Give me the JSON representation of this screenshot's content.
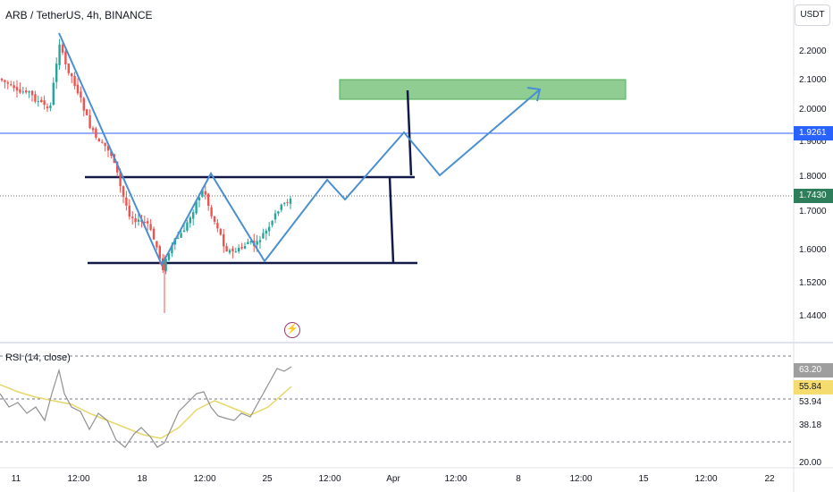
{
  "header": {
    "symbol_title": "ARB / TetherUS, 4h, BINANCE",
    "currency_button": "USDT"
  },
  "price_axis": {
    "labels": [
      "2.2000",
      "2.1000",
      "2.0000",
      "1.9000",
      "1.8000",
      "1.7000",
      "1.6000",
      "1.5200",
      "1.4400"
    ],
    "tags": [
      {
        "text": "1.9261",
        "color": "#2962ff"
      },
      {
        "text": "1.7430",
        "color": "#2e7d5b"
      }
    ]
  },
  "rsi": {
    "title": "RSI (14, close)",
    "axis_labels": [
      "53.94",
      "38.18",
      "20.00"
    ],
    "tags": [
      {
        "text": "63.20",
        "color": "#9e9e9e"
      },
      {
        "text": "55.84",
        "color": "#f5dc6e"
      }
    ]
  },
  "time_axis": {
    "labels": [
      "11",
      "12:00",
      "18",
      "12:00",
      "25",
      "12:00",
      "Apr",
      "12:00",
      "8",
      "12:00",
      "15",
      "12:00",
      "22"
    ]
  },
  "colors": {
    "accent": "#2962ff",
    "drawing_blue": "#4a8fcf",
    "target_zone": "#7cc47f",
    "channel_line": "#131a4a",
    "up_candle": "#26a69a",
    "down_candle": "#ef5350",
    "rsi_line": "#909090",
    "rsi_ma": "#e6d76a"
  },
  "icons": [
    "lightning-icon"
  ]
}
